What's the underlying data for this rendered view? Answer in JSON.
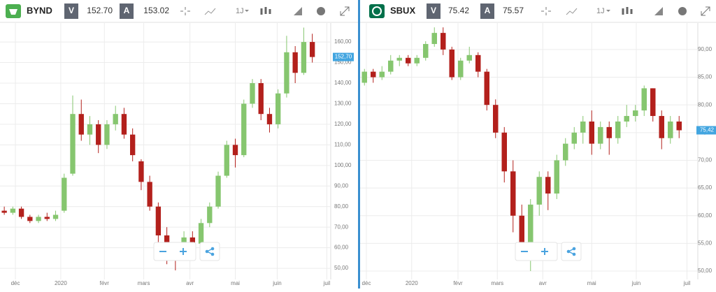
{
  "toolbars": [
    {
      "symbol": "BYND",
      "bid_label": "V",
      "bid": "152.70",
      "ask_label": "A",
      "ask": "153.02",
      "period": "1J"
    },
    {
      "symbol": "SBUX",
      "bid_label": "V",
      "bid": "75.42",
      "ask_label": "A",
      "ask": "75.57",
      "period": "1J"
    }
  ],
  "chart_data": [
    {
      "type": "candlestick",
      "up_color": "#86c66f",
      "down_color": "#b3201c",
      "grid": true,
      "categories": [
        null,
        null,
        null,
        null,
        null,
        null,
        null,
        null,
        null,
        null,
        null,
        null,
        null,
        null,
        null,
        null,
        null,
        null,
        null,
        null,
        null,
        null,
        null,
        null,
        null,
        null,
        null,
        null,
        null,
        null,
        null,
        null,
        null,
        null,
        null,
        null,
        null
      ],
      "open": [
        78,
        77,
        79,
        75,
        73,
        75,
        74,
        78,
        96,
        125,
        115,
        120,
        110,
        120,
        125,
        115,
        102,
        92,
        80,
        66,
        58,
        55,
        65,
        62,
        72,
        80,
        95,
        110,
        105,
        130,
        140,
        125,
        120,
        135,
        155,
        145,
        160
      ],
      "high": [
        80,
        80,
        80,
        76,
        76,
        77,
        78,
        96,
        134,
        132,
        124,
        122,
        122,
        129,
        128,
        118,
        103,
        95,
        82,
        70,
        62,
        68,
        68,
        74,
        82,
        97,
        112,
        113,
        132,
        142,
        142,
        128,
        137,
        163,
        158,
        167,
        164
      ],
      "low": [
        76,
        76,
        74,
        72,
        72,
        73,
        73,
        77,
        95,
        112,
        110,
        106,
        108,
        117,
        113,
        102,
        88,
        78,
        62,
        52,
        49,
        54,
        57,
        61,
        70,
        79,
        94,
        99,
        104,
        128,
        122,
        116,
        118,
        133,
        140,
        144,
        150
      ],
      "close": [
        77,
        79,
        75,
        73,
        75,
        74,
        76,
        94,
        125,
        115,
        120,
        110,
        120,
        125,
        115,
        105,
        92,
        80,
        66,
        58,
        55,
        65,
        62,
        72,
        80,
        95,
        110,
        105,
        130,
        140,
        125,
        120,
        135,
        155,
        145,
        160,
        152.7
      ],
      "ylim": [
        44.6,
        169.2
      ],
      "yticks": [
        {
          "value": 50,
          "label": "50,00"
        },
        {
          "value": 60,
          "label": "60,00"
        },
        {
          "value": 70,
          "label": "70,00"
        },
        {
          "value": 80,
          "label": "80,00"
        },
        {
          "value": 90,
          "label": "90,00"
        },
        {
          "value": 100,
          "label": "100,00"
        },
        {
          "value": 110,
          "label": "110,00"
        },
        {
          "value": 120,
          "label": "120,00"
        },
        {
          "value": 130,
          "label": "130,00"
        },
        {
          "value": 140,
          "label": "140,00"
        },
        {
          "value": 150,
          "label": "150,00"
        },
        {
          "value": 160,
          "label": "160,00"
        }
      ],
      "xticks": [
        {
          "value": 1.3,
          "label": "déc"
        },
        {
          "value": 6.6,
          "label": "2020"
        },
        {
          "value": 11.7,
          "label": "févr"
        },
        {
          "value": 16.3,
          "label": "mars"
        },
        {
          "value": 21.7,
          "label": "avr"
        },
        {
          "value": 27.0,
          "label": "mai"
        },
        {
          "value": 31.9,
          "label": "juin"
        },
        {
          "value": 37.7,
          "label": "juil"
        }
      ],
      "last_price": {
        "value": 152.7,
        "label": "152,70"
      }
    },
    {
      "type": "candlestick",
      "up_color": "#86c66f",
      "down_color": "#b3201c",
      "grid": true,
      "categories": [
        null,
        null,
        null,
        null,
        null,
        null,
        null,
        null,
        null,
        null,
        null,
        null,
        null,
        null,
        null,
        null,
        null,
        null,
        null,
        null,
        null,
        null,
        null,
        null,
        null,
        null,
        null,
        null,
        null,
        null,
        null,
        null,
        null,
        null,
        null,
        null,
        null
      ],
      "open": [
        84,
        86,
        85,
        86,
        88,
        88.5,
        87.5,
        88.5,
        91,
        93,
        90,
        85,
        88,
        89,
        86,
        80,
        75,
        68,
        60,
        55,
        62,
        67,
        64,
        70,
        73,
        75,
        77,
        73,
        76,
        74,
        77,
        78,
        79,
        83,
        78,
        74,
        77
      ],
      "high": [
        86.5,
        86.5,
        87,
        89,
        89,
        89,
        89,
        91.5,
        94,
        94,
        90.5,
        88.5,
        90.5,
        89.5,
        86.5,
        81,
        76,
        70,
        62,
        63,
        68,
        68,
        71,
        74,
        76,
        78,
        79,
        77,
        77,
        78,
        80,
        80,
        83.5,
        83,
        79,
        78,
        78
      ],
      "low": [
        83.5,
        84,
        84.5,
        85.5,
        87,
        87,
        87,
        88,
        90.5,
        89,
        84.5,
        84.5,
        87.5,
        85,
        79,
        74,
        66,
        57,
        52,
        50,
        60,
        61,
        63,
        69,
        72,
        73,
        71,
        72,
        71,
        73,
        76,
        77,
        78,
        77,
        72,
        73,
        74
      ],
      "close": [
        86,
        85,
        86,
        88,
        88.5,
        87.5,
        88.5,
        91,
        93,
        90,
        85,
        88,
        89,
        86,
        80,
        75,
        68,
        60,
        55,
        62,
        67,
        64,
        70,
        73,
        75,
        77,
        73,
        76,
        74,
        77,
        78,
        79,
        83,
        78,
        74,
        77,
        75.42
      ],
      "ylim": [
        48.49,
        94.78
      ],
      "yticks": [
        {
          "value": 50,
          "label": "50,00"
        },
        {
          "value": 55,
          "label": "55,00"
        },
        {
          "value": 60,
          "label": "60,00"
        },
        {
          "value": 65,
          "label": "65,00"
        },
        {
          "value": 70,
          "label": "70,00"
        },
        {
          "value": 75,
          "label": "75,00"
        },
        {
          "value": 80,
          "label": "80,00"
        },
        {
          "value": 85,
          "label": "85,00"
        },
        {
          "value": 90,
          "label": "90,00"
        }
      ],
      "xticks": [
        {
          "value": 0.22,
          "label": "déc"
        },
        {
          "value": 5.4,
          "label": "2020"
        },
        {
          "value": 10.7,
          "label": "févr"
        },
        {
          "value": 15.2,
          "label": "mars"
        },
        {
          "value": 20.4,
          "label": "avr"
        },
        {
          "value": 26.0,
          "label": "mai"
        },
        {
          "value": 31.1,
          "label": "juin"
        },
        {
          "value": 36.9,
          "label": "juil"
        }
      ],
      "last_price": {
        "value": 75.42,
        "label": "75,42"
      }
    }
  ]
}
